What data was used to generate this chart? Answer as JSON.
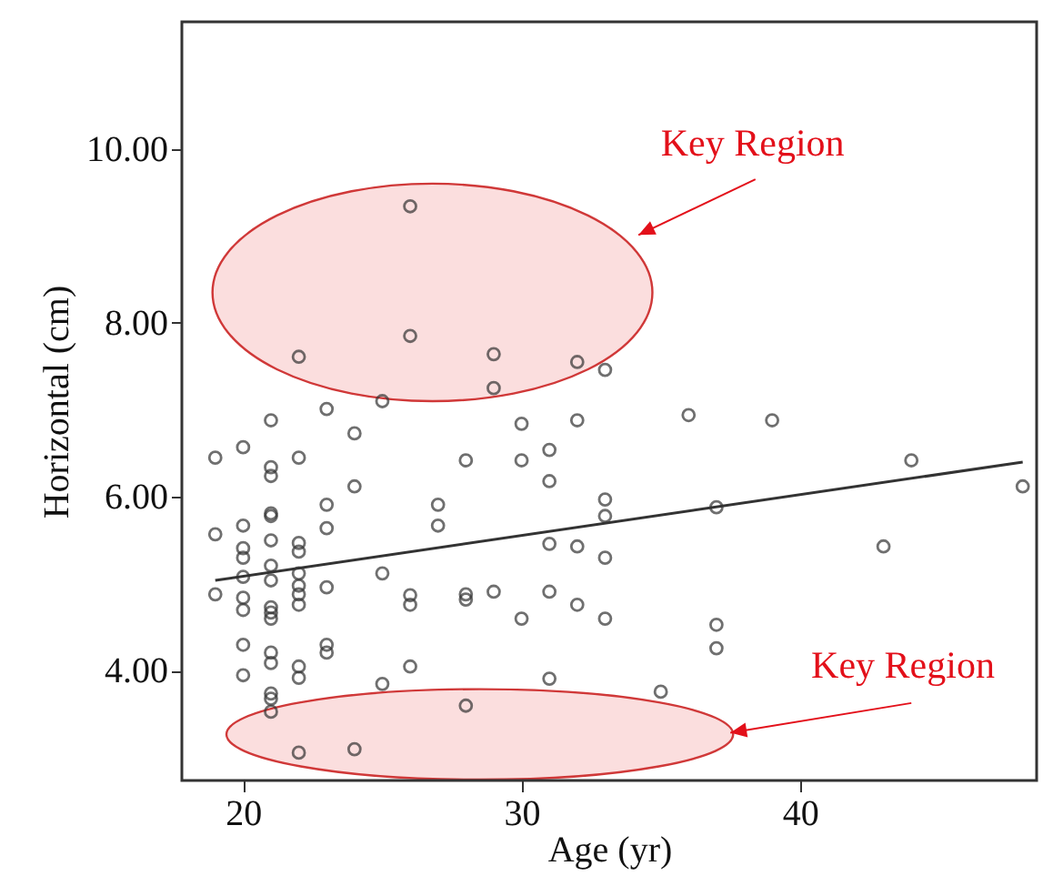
{
  "chart_data": {
    "type": "scatter",
    "xlabel": "Age (yr)",
    "ylabel": "Horizontal (cm)",
    "xlim": [
      17.8,
      48.5
    ],
    "ylim": [
      2.74,
      11.46
    ],
    "xticks": [
      20,
      30,
      40
    ],
    "yticks": [
      {
        "value": 4,
        "label": "4.00"
      },
      {
        "value": 6,
        "label": "6.00"
      },
      {
        "value": 8,
        "label": "8.00"
      },
      {
        "value": 10,
        "label": "10.00"
      }
    ],
    "grid": false,
    "marker": "circle",
    "annotations": [
      "Key Region",
      "Key Region"
    ],
    "series": [
      {
        "type": "scatter",
        "color": "#333333",
        "x": [
          19,
          19,
          19,
          20,
          20,
          20,
          20,
          20,
          20,
          20,
          20,
          20,
          21,
          21,
          21,
          21,
          21,
          21,
          21,
          21,
          21,
          21,
          21,
          21,
          21,
          21,
          21,
          21,
          22,
          22,
          22,
          22,
          22,
          22,
          22,
          22,
          22,
          22,
          22,
          23,
          23,
          23,
          23,
          23,
          23,
          24,
          24,
          24,
          25,
          25,
          25,
          26,
          26,
          26,
          26,
          26,
          27,
          27,
          28,
          28,
          28,
          28,
          29,
          29,
          29,
          30,
          30,
          30,
          31,
          31,
          31,
          31,
          31,
          32,
          32,
          32,
          32,
          33,
          33,
          33,
          33,
          33,
          35,
          36,
          37,
          37,
          37,
          39,
          43,
          44,
          48
        ],
        "values": [
          6.45,
          5.57,
          4.88,
          6.57,
          5.67,
          5.41,
          5.3,
          5.08,
          4.84,
          4.7,
          4.3,
          3.95,
          6.88,
          6.34,
          6.24,
          5.81,
          5.78,
          5.5,
          5.21,
          5.04,
          4.73,
          4.67,
          4.6,
          4.21,
          4.09,
          3.74,
          3.68,
          3.53,
          7.61,
          6.45,
          5.47,
          5.37,
          5.12,
          4.98,
          4.88,
          4.76,
          4.05,
          3.92,
          3.06,
          7.01,
          5.91,
          5.64,
          4.96,
          4.3,
          4.21,
          6.73,
          6.12,
          3.1,
          7.1,
          5.12,
          3.85,
          9.34,
          7.85,
          4.87,
          4.76,
          4.05,
          5.91,
          5.67,
          6.42,
          4.88,
          4.82,
          3.6,
          7.64,
          7.25,
          4.91,
          6.84,
          6.42,
          4.6,
          6.54,
          6.18,
          5.46,
          4.91,
          3.91,
          7.55,
          6.88,
          5.43,
          4.76,
          7.46,
          5.97,
          5.78,
          5.3,
          4.6,
          3.76,
          6.94,
          5.88,
          4.53,
          4.26,
          6.88,
          5.43,
          6.42,
          6.12
        ]
      },
      {
        "type": "line",
        "color": "#333333",
        "x": [
          19,
          48
        ],
        "values": [
          5.04,
          6.4
        ],
        "marker": "none"
      }
    ]
  }
}
